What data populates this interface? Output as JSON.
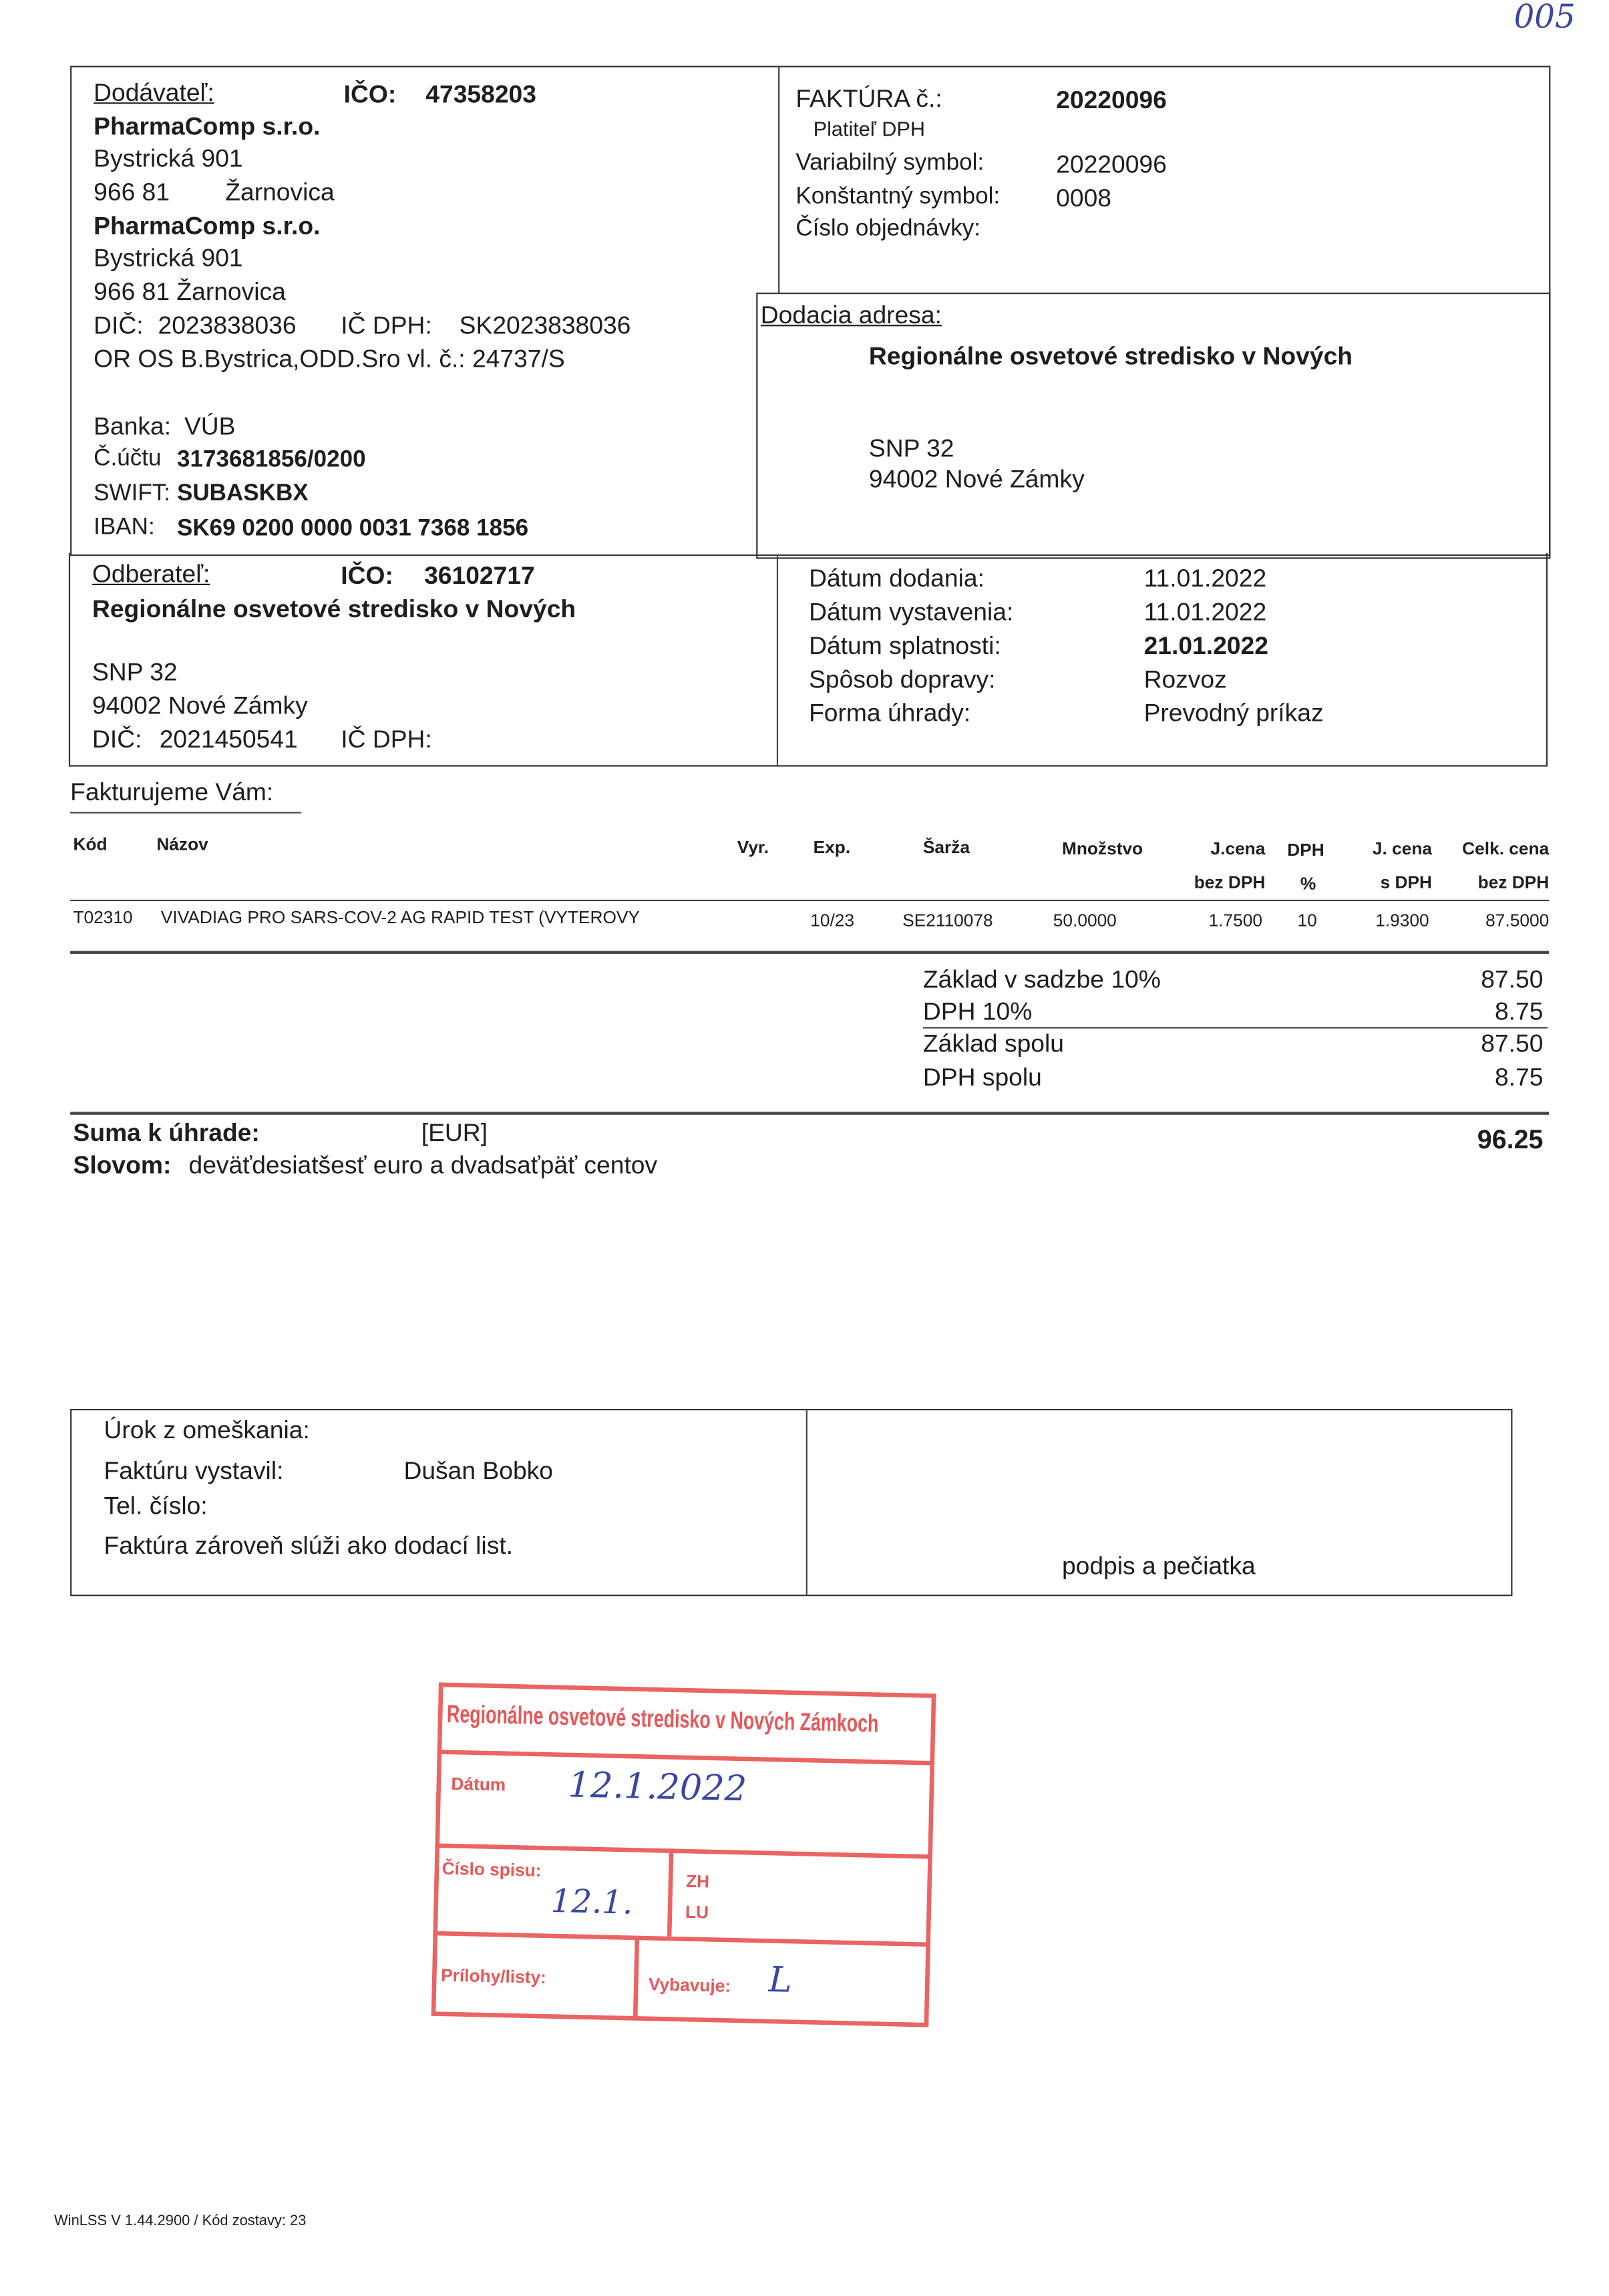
{
  "page_mark": "005",
  "supplier": {
    "label": "Dodávateľ:",
    "ico_label": "IČO:",
    "ico": "47358203",
    "name1": "PharmaComp s.r.o.",
    "street1": "Bystrická 901",
    "zip1": "966 81",
    "city1": "Žarnovica",
    "name2": "PharmaComp s.r.o.",
    "street2": "Bystrická 901",
    "zipcity2": "966 81 Žarnovica",
    "dic_label": "DIČ:",
    "dic": "2023838036",
    "icdph_label": "IČ DPH:",
    "icdph": "SK2023838036",
    "register": "OR OS B.Bystrica,ODD.Sro vl. č.: 24737/S",
    "bank_label": "Banka:",
    "bank": "VÚB",
    "account_label": "Č.účtu",
    "account": "3173681856/0200",
    "swift_label": "SWIFT:",
    "swift": "SUBASKBX",
    "iban_label": "IBAN:",
    "iban": "SK69 0200 0000 0031 7368 1856"
  },
  "invoice": {
    "title": "FAKTÚRA č.:",
    "number": "20220096",
    "vat_payer": "Platiteľ DPH",
    "var_symbol_label": "Variabilný symbol:",
    "var_symbol": "20220096",
    "const_symbol_label": "Konštantný symbol:",
    "const_symbol": "0008",
    "order_label": "Číslo objednávky:"
  },
  "delivery": {
    "label": "Dodacia adresa:",
    "name": "Regionálne osvetové stredisko v Nových",
    "street": "SNP 32",
    "zipcity": "94002 Nové Zámky"
  },
  "customer": {
    "label": "Odberateľ:",
    "ico_label": "IČO:",
    "ico": "36102717",
    "name": "Regionálne osvetové stredisko v Nových",
    "street": "SNP 32",
    "zipcity": "94002 Nové Zámky",
    "dic_label": "DIČ:",
    "dic": "2021450541",
    "icdph_label": "IČ DPH:"
  },
  "dates": [
    {
      "label": "Dátum dodania:",
      "value": "11.01.2022",
      "bold": false
    },
    {
      "label": "Dátum vystavenia:",
      "value": "11.01.2022",
      "bold": false
    },
    {
      "label": "Dátum splatnosti:",
      "value": "21.01.2022",
      "bold": true
    },
    {
      "label": "Spôsob dopravy:",
      "value": "Rozvoz",
      "bold": false
    },
    {
      "label": "Forma úhrady:",
      "value": "Prevodný príkaz",
      "bold": false
    }
  ],
  "items_heading": "Fakturujeme Vám:",
  "table": {
    "headers": {
      "code": "Kód",
      "name": "Názov",
      "vyr": "Vyr.",
      "exp": "Exp.",
      "batch": "Šarža",
      "qty": "Množstvo",
      "unit_price": "J.cena",
      "unit_price2": "bez DPH",
      "vat": "DPH",
      "vat2": "%",
      "unit_price_vat": "J. cena",
      "unit_price_vat2": "s DPH",
      "total": "Celk. cena",
      "total2": "bez DPH"
    },
    "rows": [
      {
        "code": "T02310",
        "name": "VIVADIAG PRO SARS-COV-2 AG RAPID TEST (VYTEROVY",
        "vyr": "",
        "exp": "10/23",
        "batch": "SE2110078",
        "qty": "50.0000",
        "unit_price": "1.7500",
        "vat": "10",
        "unit_price_vat": "1.9300",
        "total": "87.5000"
      }
    ]
  },
  "totals": [
    {
      "label": "Základ v sadzbe 10%",
      "value": "87.50"
    },
    {
      "label": "DPH 10%",
      "value": "8.75"
    },
    {
      "label": "Základ spolu",
      "value": "87.50"
    },
    {
      "label": "DPH spolu",
      "value": "8.75"
    }
  ],
  "sum": {
    "label": "Suma k úhrade:",
    "currency": "[EUR]",
    "value": "96.25",
    "words_label": "Slovom:",
    "words": "deväťdesiatšesť euro a dvadsaťpäť centov"
  },
  "footer_box": {
    "interest": "Úrok z omeškania:",
    "issued_label": "Faktúru vystavil:",
    "issued_by": "Dušan Bobko",
    "phone_label": "Tel. číslo:",
    "note": "Faktúra zároveň slúži ako dodací list.",
    "signature": "podpis a pečiatka"
  },
  "software": "WinLSS V 1.44.2900 / Kód zostavy: 23",
  "stamp": {
    "color": "#e85a5a",
    "org": "Regionálne osvetové stredisko v Nových Zámkoch",
    "date_label": "Dátum",
    "date_hand": "12.1.2022",
    "file_label": "Číslo spisu:",
    "file_hand": "12.1.",
    "zh": "ZH",
    "lu": "LU",
    "attachments_label": "Prílohy/listy:",
    "handled_label": "Vybavuje:",
    "handled_hand": "L"
  }
}
